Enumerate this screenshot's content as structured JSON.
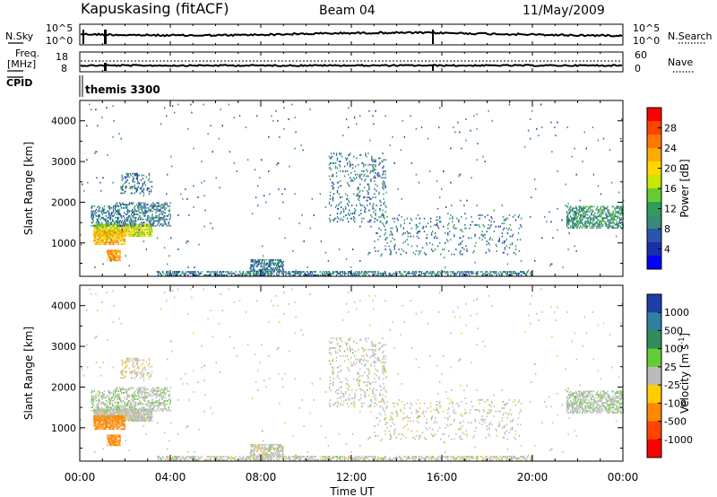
{
  "header": {
    "station": "Kapuskasing (fitACF)",
    "beam": "Beam 04",
    "date": "11/May/2009"
  },
  "summary_panels": {
    "nsky_label": "N.Sky",
    "nsearch_label": "N.Search",
    "nsky_ticks": [
      "10^5",
      "10^0"
    ],
    "nsearch_ticks": [
      "10^5",
      "10^0"
    ],
    "freq_label_line1": "Freq.",
    "freq_label_line2": "[MHz]",
    "freq_ticks": [
      "18",
      "8"
    ],
    "nave_label": "Nave",
    "nave_ticks": [
      "60",
      "0"
    ],
    "cpid_label": "CPID",
    "cpid_value": "themis 3300"
  },
  "colorbars": {
    "power": {
      "label": "Power [dB]",
      "ticks": [
        "28",
        "24",
        "20",
        "16",
        "12",
        "8",
        "4"
      ],
      "colors": [
        "#ff0000",
        "#ff4400",
        "#ff7700",
        "#ffaa00",
        "#ffd700",
        "#c8e600",
        "#66cc33",
        "#2e9e5a",
        "#3a8a7a",
        "#2a55aa",
        "#1a2eaa",
        "#0000ff"
      ]
    },
    "velocity": {
      "label": "Velocity [m s",
      "label_sup": "-1",
      "label_end": "]",
      "ticks": [
        "1000",
        "500",
        "100",
        "25",
        "-25",
        "-100",
        "-500",
        "-1000"
      ],
      "colors": [
        "#1f3fa8",
        "#2e7fa0",
        "#2e8f5a",
        "#66cc33",
        "#bbbbbb",
        "#ffcc00",
        "#ff8800",
        "#ff4400",
        "#ff0000"
      ]
    }
  },
  "chart_data": {
    "type": "heatmap",
    "xlabel": "Time UT",
    "x_ticks": [
      "00:00",
      "04:00",
      "08:00",
      "12:00",
      "16:00",
      "20:00",
      "00:00"
    ],
    "xlim_hours": [
      0,
      24
    ],
    "ylabel": "Slant Range [km]",
    "y_ticks": [
      1000,
      2000,
      3000,
      4000
    ],
    "ylim": [
      180,
      4500
    ],
    "scatter_regions": [
      {
        "t0": 0.6,
        "t1": 3.2,
        "r0": 1150,
        "r1": 1450,
        "density": 0.8,
        "power": 18,
        "velocity": 0
      },
      {
        "t0": 0.6,
        "t1": 2.0,
        "r0": 950,
        "r1": 1300,
        "density": 0.7,
        "power": 22,
        "velocity": -300
      },
      {
        "t0": 1.2,
        "t1": 1.8,
        "r0": 550,
        "r1": 800,
        "density": 0.7,
        "power": 24,
        "velocity": -400
      },
      {
        "t0": 1.5,
        "t1": 4.0,
        "r0": 1400,
        "r1": 2000,
        "density": 0.35,
        "power": 8,
        "velocity": 10
      },
      {
        "t0": 0.5,
        "t1": 1.5,
        "r0": 1400,
        "r1": 1900,
        "density": 0.35,
        "power": 8,
        "velocity": 10
      },
      {
        "t0": 1.8,
        "t1": 3.2,
        "r0": 2200,
        "r1": 2700,
        "density": 0.25,
        "power": 8,
        "velocity": -10
      },
      {
        "t0": 3.4,
        "t1": 20.0,
        "r0": 190,
        "r1": 280,
        "density": 0.45,
        "power": 8,
        "velocity": 0
      },
      {
        "t0": 7.5,
        "t1": 9.0,
        "r0": 280,
        "r1": 600,
        "density": 0.5,
        "power": 8,
        "velocity": 0
      },
      {
        "t0": 11.0,
        "t1": 13.5,
        "r0": 1500,
        "r1": 3200,
        "density": 0.12,
        "power": 8,
        "velocity": 0
      },
      {
        "t0": 13.0,
        "t1": 19.5,
        "r0": 700,
        "r1": 1700,
        "density": 0.08,
        "power": 8,
        "velocity": 0
      },
      {
        "t0": 21.5,
        "t1": 24.0,
        "r0": 1350,
        "r1": 1900,
        "density": 0.5,
        "power": 10,
        "velocity": 10
      },
      {
        "t0": 0.0,
        "t1": 24.0,
        "r0": 300,
        "r1": 4400,
        "density": 0.006,
        "power": 8,
        "velocity": 0
      }
    ]
  }
}
